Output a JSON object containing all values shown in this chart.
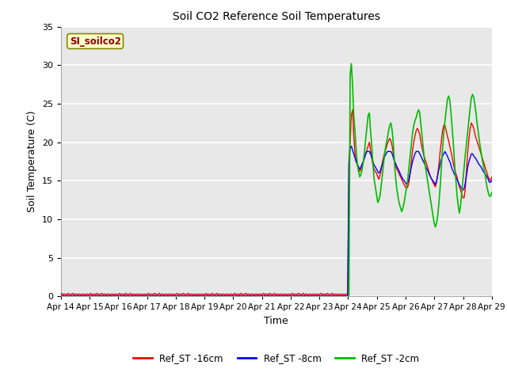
{
  "title": "Soil CO2 Reference Soil Temperatures",
  "xlabel": "Time",
  "ylabel": "Soil Temperature (C)",
  "legend_label": "SI_soilco2",
  "series_labels": [
    "Ref_ST -16cm",
    "Ref_ST -8cm",
    "Ref_ST -2cm"
  ],
  "series_colors": [
    "#ff0000",
    "#0000ff",
    "#00bb00"
  ],
  "ylim": [
    0,
    35
  ],
  "plot_bg_color": "#e8e8e8",
  "x_tick_labels": [
    "Apr 14",
    "Apr 15",
    "Apr 16",
    "Apr 17",
    "Apr 18",
    "Apr 19",
    "Apr 20",
    "Apr 21",
    "Apr 22",
    "Apr 23",
    "Apr 24",
    "Apr 25",
    "Apr 26",
    "Apr 27",
    "Apr 28",
    "Apr 29"
  ],
  "red_data": [
    0.3,
    0.4,
    0.2,
    0.3,
    0.3,
    0.2,
    0.4,
    0.3,
    0.2,
    0.3,
    0.4,
    0.2,
    0.3,
    0.3,
    0.2,
    0.3,
    0.3,
    0.2,
    0.3,
    0.3,
    0.2,
    0.3,
    0.3,
    0.2,
    0.3,
    0.4,
    0.2,
    0.3,
    0.3,
    0.2,
    0.4,
    0.3,
    0.2,
    0.3,
    0.4,
    0.2,
    0.3,
    0.3,
    0.2,
    0.3,
    0.3,
    0.2,
    0.3,
    0.3,
    0.2,
    0.3,
    0.3,
    0.2,
    0.3,
    0.4,
    0.2,
    0.3,
    0.3,
    0.2,
    0.4,
    0.3,
    0.2,
    0.3,
    0.4,
    0.2,
    0.3,
    0.3,
    0.2,
    0.3,
    0.3,
    0.2,
    0.3,
    0.3,
    0.2,
    0.3,
    0.3,
    0.2,
    0.3,
    0.4,
    0.2,
    0.3,
    0.3,
    0.2,
    0.4,
    0.3,
    0.2,
    0.3,
    0.4,
    0.2,
    0.3,
    0.3,
    0.2,
    0.3,
    0.3,
    0.2,
    0.3,
    0.3,
    0.2,
    0.3,
    0.3,
    0.2,
    0.3,
    0.4,
    0.2,
    0.3,
    0.3,
    0.2,
    0.4,
    0.3,
    0.2,
    0.3,
    0.4,
    0.2,
    0.3,
    0.3,
    0.2,
    0.3,
    0.3,
    0.2,
    0.3,
    0.3,
    0.2,
    0.3,
    0.3,
    0.2,
    0.3,
    0.4,
    0.2,
    0.3,
    0.3,
    0.2,
    0.4,
    0.3,
    0.2,
    0.3,
    0.4,
    0.2,
    0.3,
    0.3,
    0.2,
    0.3,
    0.3,
    0.2,
    0.3,
    0.3,
    0.2,
    0.3,
    0.3,
    0.2,
    0.3,
    0.4,
    0.2,
    0.3,
    0.3,
    0.2,
    0.4,
    0.3,
    0.2,
    0.3,
    0.4,
    0.2,
    0.3,
    0.3,
    0.2,
    0.3,
    0.3,
    0.2,
    0.3,
    0.3,
    0.2,
    0.3,
    0.3,
    0.2,
    0.3,
    0.4,
    0.2,
    0.3,
    0.3,
    0.2,
    0.4,
    0.3,
    0.2,
    0.3,
    0.4,
    0.2,
    0.3,
    0.3,
    0.2,
    0.3,
    0.3,
    0.2,
    0.3,
    0.3,
    0.2,
    0.3,
    0.3,
    0.2,
    0.3,
    0.4,
    0.2,
    0.3,
    0.3,
    0.2,
    0.4,
    0.3,
    0.2,
    0.3,
    0.4,
    0.2,
    0.3,
    0.3,
    0.2,
    0.3,
    0.3,
    0.2,
    0.3,
    0.3,
    0.2,
    0.3,
    0.3,
    0.2,
    0.3,
    0.4,
    0.2,
    0.3,
    0.3,
    0.2,
    0.4,
    0.3,
    0.2,
    0.3,
    0.4,
    0.2,
    0.3,
    0.3,
    0.2,
    0.3,
    0.3,
    0.2,
    0.3,
    0.3,
    0.2,
    0.3,
    0.3,
    0.2,
    17.5,
    20.0,
    23.5,
    24.2,
    21.0,
    18.5,
    17.5,
    17.0,
    16.5,
    16.2,
    16.5,
    17.0,
    17.5,
    18.0,
    18.5,
    19.0,
    19.5,
    20.0,
    19.0,
    18.0,
    17.0,
    16.5,
    16.2,
    16.0,
    15.5,
    15.2,
    15.8,
    16.5,
    17.5,
    18.2,
    18.8,
    19.2,
    19.8,
    20.2,
    20.5,
    20.2,
    19.5,
    18.5,
    17.5,
    16.8,
    16.5,
    16.2,
    15.8,
    15.5,
    15.2,
    14.8,
    14.5,
    14.2,
    14.0,
    14.2,
    14.8,
    16.0,
    17.5,
    19.0,
    20.0,
    20.8,
    21.5,
    21.8,
    21.5,
    21.0,
    20.0,
    19.2,
    18.5,
    18.0,
    17.5,
    17.0,
    16.5,
    16.0,
    15.5,
    15.2,
    14.8,
    14.5,
    14.2,
    14.8,
    15.8,
    17.2,
    18.8,
    20.2,
    21.5,
    22.2,
    22.2,
    21.5,
    20.8,
    20.2,
    19.5,
    18.8,
    18.0,
    17.2,
    16.5,
    16.0,
    15.5,
    14.8,
    14.2,
    13.8,
    13.2,
    12.8,
    12.8,
    14.2,
    16.5,
    18.8,
    20.5,
    21.8,
    22.5,
    22.2,
    21.8,
    21.0,
    20.5,
    20.0,
    19.5,
    19.0,
    18.5,
    18.0,
    17.5,
    17.0,
    16.5,
    16.0,
    15.5,
    15.2,
    15.0,
    15.5
  ],
  "blue_data": [
    0.1,
    0.1,
    0.1,
    0.1,
    0.1,
    0.1,
    0.1,
    0.1,
    0.1,
    0.1,
    0.1,
    0.1,
    0.1,
    0.1,
    0.1,
    0.1,
    0.1,
    0.1,
    0.1,
    0.1,
    0.1,
    0.1,
    0.1,
    0.1,
    0.1,
    0.1,
    0.1,
    0.1,
    0.1,
    0.1,
    0.1,
    0.1,
    0.1,
    0.1,
    0.1,
    0.1,
    0.1,
    0.1,
    0.1,
    0.1,
    0.1,
    0.1,
    0.1,
    0.1,
    0.1,
    0.1,
    0.1,
    0.1,
    0.1,
    0.1,
    0.1,
    0.1,
    0.1,
    0.1,
    0.1,
    0.1,
    0.1,
    0.1,
    0.1,
    0.1,
    0.1,
    0.1,
    0.1,
    0.1,
    0.1,
    0.1,
    0.1,
    0.1,
    0.1,
    0.1,
    0.1,
    0.1,
    0.1,
    0.1,
    0.1,
    0.1,
    0.1,
    0.1,
    0.1,
    0.1,
    0.1,
    0.1,
    0.1,
    0.1,
    0.1,
    0.1,
    0.1,
    0.1,
    0.1,
    0.1,
    0.1,
    0.1,
    0.1,
    0.1,
    0.1,
    0.1,
    0.1,
    0.1,
    0.1,
    0.1,
    0.1,
    0.1,
    0.1,
    0.1,
    0.1,
    0.1,
    0.1,
    0.1,
    0.1,
    0.1,
    0.1,
    0.1,
    0.1,
    0.1,
    0.1,
    0.1,
    0.1,
    0.1,
    0.1,
    0.1,
    0.1,
    0.1,
    0.1,
    0.1,
    0.1,
    0.1,
    0.1,
    0.1,
    0.1,
    0.1,
    0.1,
    0.1,
    0.1,
    0.1,
    0.1,
    0.1,
    0.1,
    0.1,
    0.1,
    0.1,
    0.1,
    0.1,
    0.1,
    0.1,
    0.1,
    0.1,
    0.1,
    0.1,
    0.1,
    0.1,
    0.1,
    0.1,
    0.1,
    0.1,
    0.1,
    0.1,
    0.1,
    0.1,
    0.1,
    0.1,
    0.1,
    0.1,
    0.1,
    0.1,
    0.1,
    0.1,
    0.1,
    0.1,
    0.1,
    0.1,
    0.1,
    0.1,
    0.1,
    0.1,
    0.1,
    0.1,
    0.1,
    0.1,
    0.1,
    0.1,
    0.1,
    0.1,
    0.1,
    0.1,
    0.1,
    0.1,
    0.1,
    0.1,
    0.1,
    0.1,
    0.1,
    0.1,
    0.1,
    0.1,
    0.1,
    0.1,
    0.1,
    0.1,
    0.1,
    0.1,
    0.1,
    0.1,
    0.1,
    0.1,
    0.1,
    0.1,
    0.1,
    0.1,
    0.1,
    0.1,
    0.1,
    0.1,
    0.1,
    0.1,
    0.1,
    0.1,
    0.1,
    0.1,
    0.1,
    0.1,
    0.1,
    0.1,
    0.1,
    0.1,
    0.1,
    0.1,
    0.1,
    0.1,
    0.1,
    0.1,
    0.1,
    0.1,
    0.1,
    0.1,
    0.1,
    0.1,
    0.1,
    0.1,
    0.1,
    0.1,
    17.2,
    19.2,
    19.5,
    19.0,
    18.5,
    18.0,
    17.5,
    17.2,
    16.8,
    16.5,
    16.8,
    17.2,
    17.5,
    18.0,
    18.5,
    18.8,
    18.8,
    18.8,
    18.5,
    18.0,
    17.5,
    17.0,
    16.8,
    16.5,
    16.2,
    16.0,
    16.2,
    16.8,
    17.2,
    17.8,
    18.2,
    18.5,
    18.8,
    18.8,
    18.8,
    18.8,
    18.5,
    18.0,
    17.5,
    17.2,
    16.8,
    16.5,
    16.2,
    15.8,
    15.5,
    15.2,
    15.0,
    14.8,
    14.5,
    14.8,
    15.2,
    16.0,
    16.8,
    17.5,
    18.0,
    18.5,
    18.8,
    18.8,
    18.8,
    18.5,
    18.2,
    17.8,
    17.5,
    17.2,
    16.8,
    16.5,
    16.2,
    15.8,
    15.5,
    15.2,
    15.0,
    14.8,
    14.5,
    15.0,
    15.8,
    16.5,
    17.2,
    17.8,
    18.2,
    18.5,
    18.8,
    18.5,
    18.2,
    17.8,
    17.5,
    17.0,
    16.5,
    16.2,
    15.8,
    15.5,
    15.2,
    14.8,
    14.5,
    14.2,
    14.0,
    13.8,
    14.0,
    14.8,
    15.8,
    16.8,
    17.5,
    18.0,
    18.5,
    18.5,
    18.2,
    18.0,
    17.8,
    17.5,
    17.2,
    17.0,
    16.8,
    16.5,
    16.2,
    16.0,
    15.8,
    15.5,
    15.2,
    14.8,
    14.8,
    15.0
  ],
  "green_data": [
    0.0,
    0.0,
    0.0,
    0.0,
    0.0,
    0.0,
    0.0,
    0.0,
    0.0,
    0.0,
    0.0,
    0.0,
    0.0,
    0.0,
    0.0,
    0.0,
    0.0,
    0.0,
    0.0,
    0.0,
    0.0,
    0.0,
    0.0,
    0.0,
    0.0,
    0.0,
    0.0,
    0.0,
    0.0,
    0.0,
    0.0,
    0.0,
    0.0,
    0.0,
    0.0,
    0.0,
    0.0,
    0.0,
    0.0,
    0.0,
    0.0,
    0.0,
    0.0,
    0.0,
    0.0,
    0.0,
    0.0,
    0.0,
    0.0,
    0.0,
    0.0,
    0.0,
    0.0,
    0.0,
    0.0,
    0.0,
    0.0,
    0.0,
    0.0,
    0.0,
    0.0,
    0.0,
    0.0,
    0.0,
    0.0,
    0.0,
    0.0,
    0.0,
    0.0,
    0.0,
    0.0,
    0.0,
    0.0,
    0.0,
    0.0,
    0.0,
    0.0,
    0.0,
    0.0,
    0.0,
    0.0,
    0.0,
    0.0,
    0.0,
    0.0,
    0.0,
    0.0,
    0.0,
    0.0,
    0.0,
    0.0,
    0.0,
    0.0,
    0.0,
    0.0,
    0.0,
    0.0,
    0.0,
    0.0,
    0.0,
    0.0,
    0.0,
    0.0,
    0.0,
    0.0,
    0.0,
    0.0,
    0.0,
    0.0,
    0.0,
    0.0,
    0.0,
    0.0,
    0.0,
    0.0,
    0.0,
    0.0,
    0.0,
    0.0,
    0.0,
    0.0,
    0.0,
    0.0,
    0.0,
    0.0,
    0.0,
    0.0,
    0.0,
    0.0,
    0.0,
    0.0,
    0.0,
    0.0,
    0.0,
    0.0,
    0.0,
    0.0,
    0.0,
    0.0,
    0.0,
    0.0,
    0.0,
    0.0,
    0.0,
    0.0,
    0.0,
    0.0,
    0.0,
    0.0,
    0.0,
    0.0,
    0.0,
    0.0,
    0.0,
    0.0,
    0.0,
    0.0,
    0.0,
    0.0,
    0.0,
    0.0,
    0.0,
    0.0,
    0.0,
    0.0,
    0.0,
    0.0,
    0.0,
    0.0,
    0.0,
    0.0,
    0.0,
    0.0,
    0.0,
    0.0,
    0.0,
    0.0,
    0.0,
    0.0,
    0.0,
    0.0,
    0.0,
    0.0,
    0.0,
    0.0,
    0.0,
    0.0,
    0.0,
    0.0,
    0.0,
    0.0,
    0.0,
    0.0,
    0.0,
    0.0,
    0.0,
    0.0,
    0.0,
    0.0,
    0.0,
    0.0,
    0.0,
    0.0,
    0.0,
    0.0,
    0.0,
    0.0,
    0.0,
    0.0,
    0.0,
    0.0,
    0.0,
    0.0,
    0.0,
    0.0,
    0.0,
    0.0,
    0.0,
    0.0,
    0.0,
    0.0,
    0.0,
    0.0,
    0.0,
    0.0,
    0.0,
    0.0,
    0.0,
    0.0,
    0.0,
    0.0,
    0.0,
    0.0,
    0.0,
    0.0,
    0.0,
    0.0,
    0.0,
    0.0,
    0.0,
    0.0,
    28.8,
    30.2,
    27.5,
    23.5,
    21.5,
    19.0,
    17.2,
    16.2,
    15.5,
    15.8,
    16.5,
    17.5,
    18.8,
    20.5,
    22.0,
    23.5,
    23.8,
    21.5,
    19.5,
    17.2,
    15.2,
    14.2,
    13.2,
    12.2,
    12.5,
    13.2,
    14.5,
    16.0,
    17.5,
    18.8,
    19.8,
    20.5,
    21.5,
    22.2,
    22.5,
    21.5,
    19.8,
    17.2,
    15.2,
    13.8,
    12.8,
    12.0,
    11.5,
    11.0,
    11.5,
    12.2,
    13.2,
    14.2,
    15.2,
    16.8,
    18.2,
    19.8,
    21.2,
    22.2,
    22.8,
    23.2,
    23.8,
    24.2,
    23.8,
    22.2,
    20.5,
    19.0,
    17.5,
    16.5,
    15.5,
    14.5,
    13.5,
    12.5,
    11.5,
    10.5,
    9.5,
    9.0,
    9.5,
    10.5,
    12.2,
    14.2,
    16.8,
    19.2,
    21.2,
    22.8,
    24.2,
    25.5,
    26.0,
    25.5,
    23.8,
    21.8,
    19.8,
    17.2,
    15.2,
    13.2,
    11.8,
    10.8,
    11.8,
    13.5,
    15.2,
    16.8,
    18.5,
    20.0,
    21.5,
    23.0,
    24.5,
    25.8,
    26.2,
    25.8,
    24.8,
    23.5,
    22.2,
    21.0,
    19.8,
    18.8,
    17.8,
    17.0,
    16.2,
    15.2,
    14.2,
    13.5,
    13.0,
    13.0,
    13.5
  ]
}
